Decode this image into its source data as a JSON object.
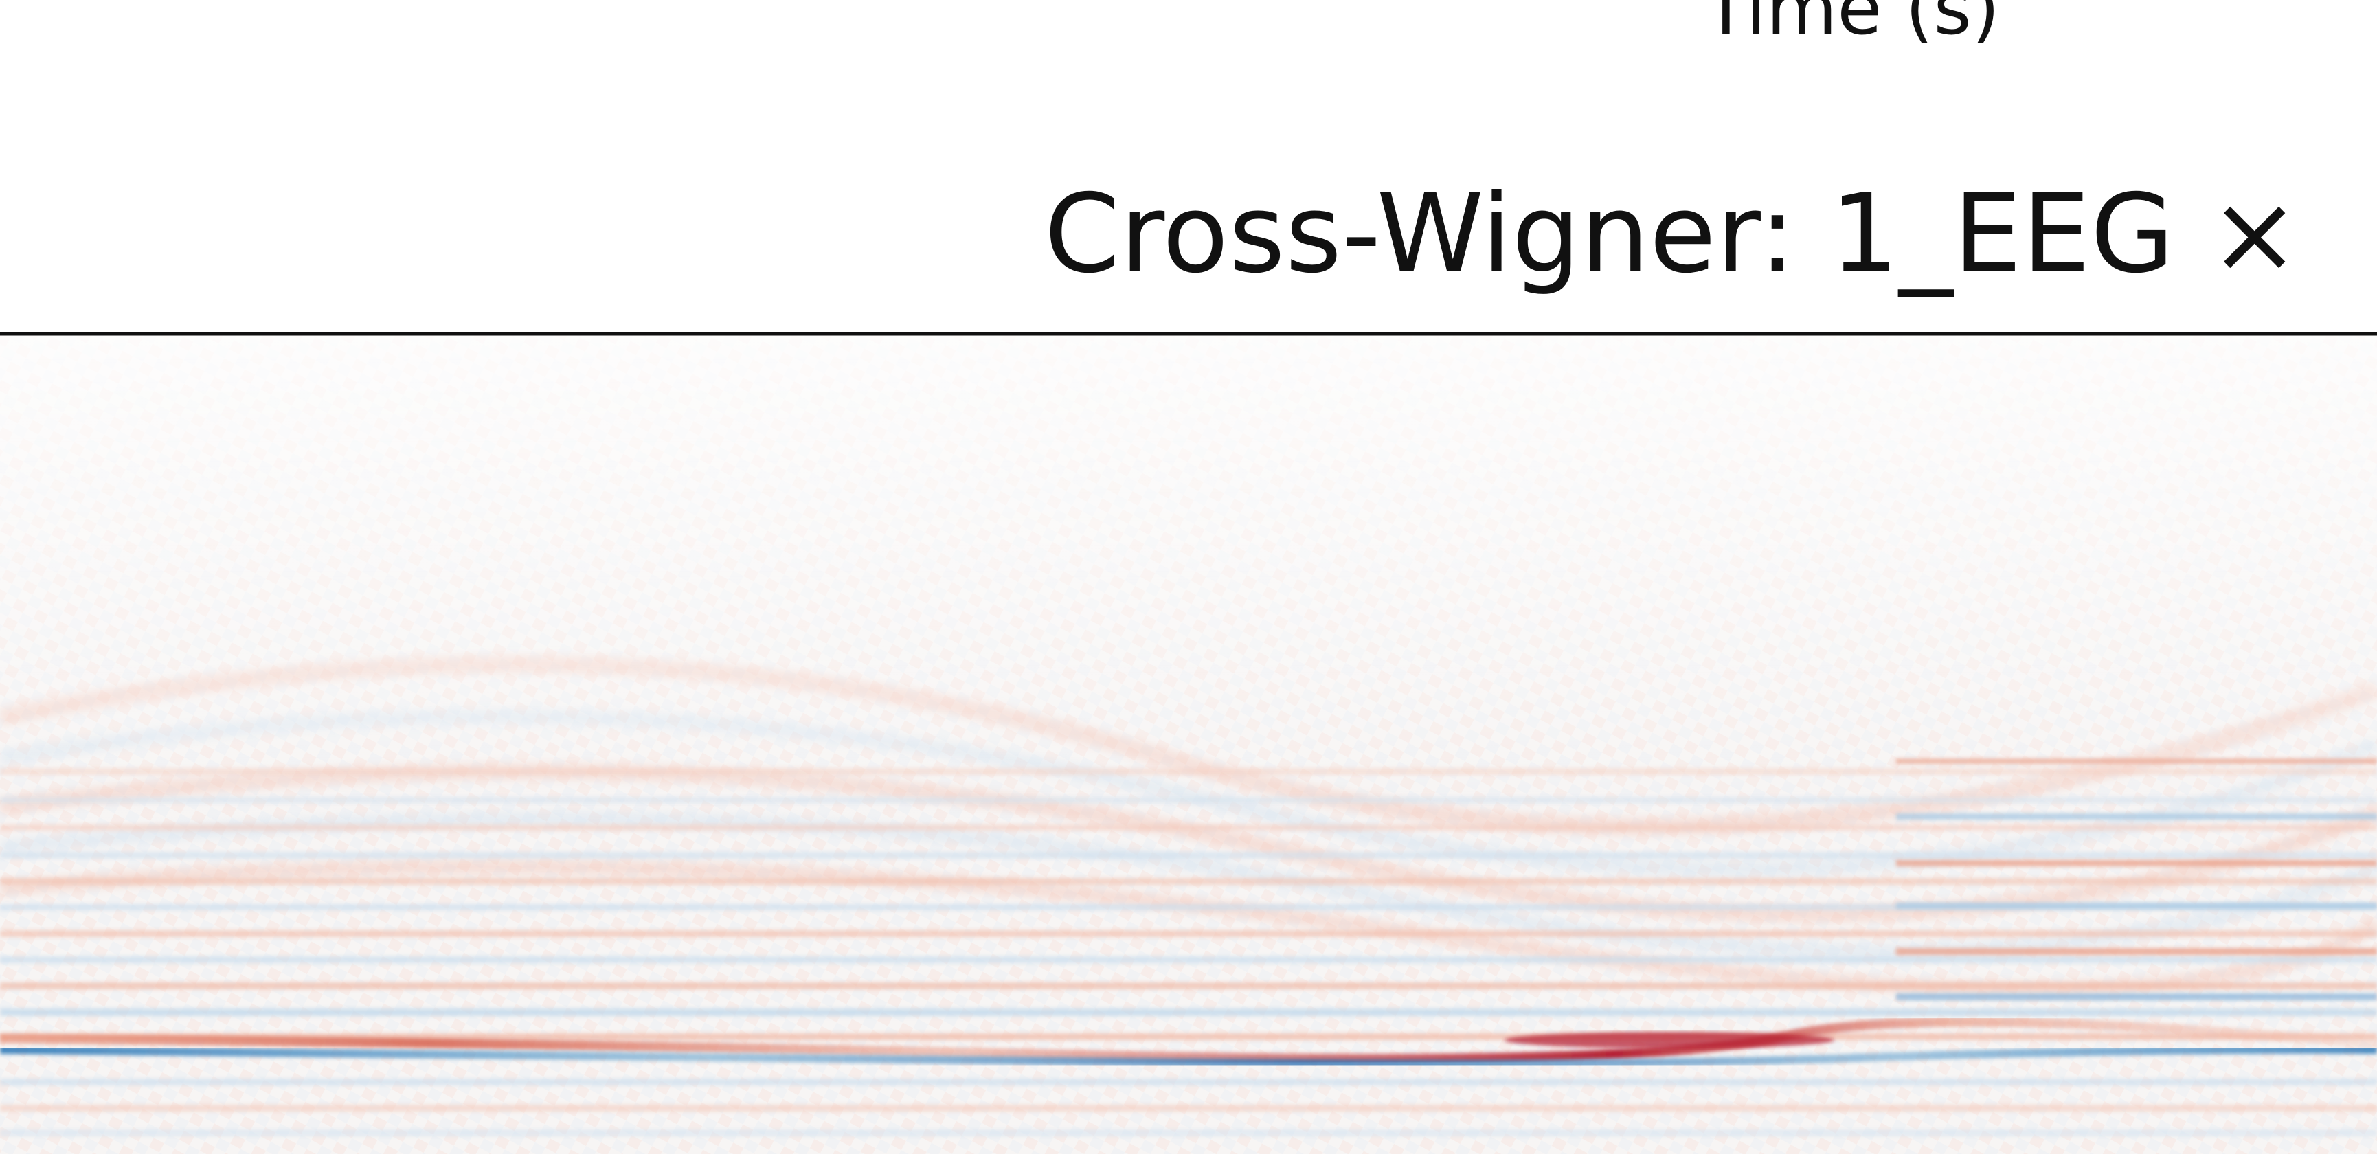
{
  "chart_data": {
    "type": "heatmap",
    "title": "Cross-Wigner: 1_EEG ×",
    "xlabel": "Time (s)",
    "ylabel": "",
    "colormap": "diverging red-white-blue",
    "colors": {
      "positive": "#b2182b",
      "neutral": "#f7f7f7",
      "negative": "#2166ac"
    },
    "grid": false
  }
}
